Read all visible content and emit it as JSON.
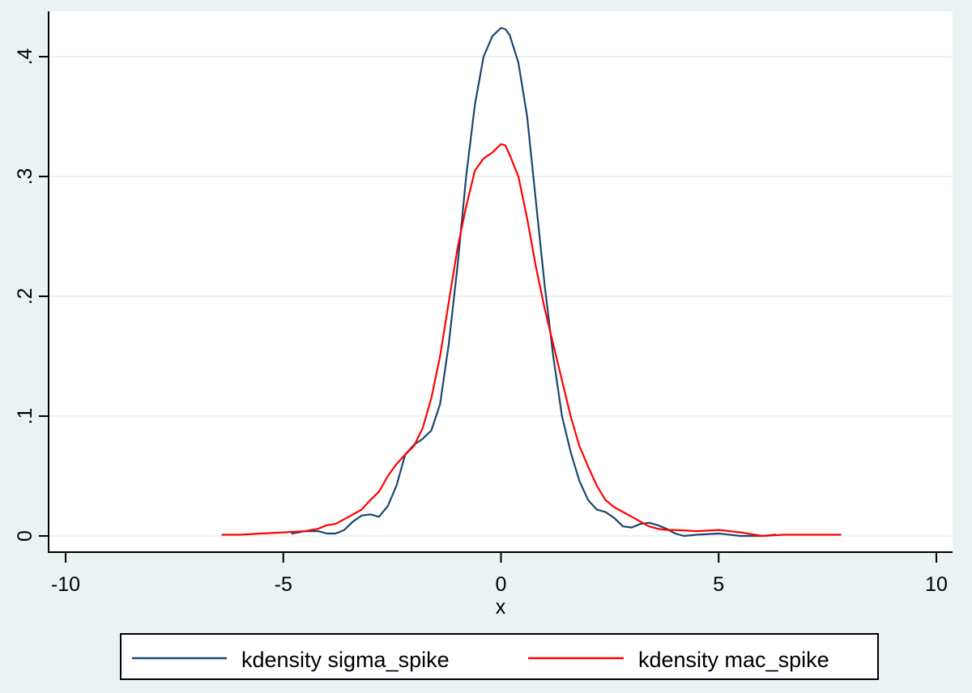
{
  "chart_data": {
    "type": "line",
    "title": "",
    "xlabel": "x",
    "ylabel": "",
    "xlim": [
      -10,
      10
    ],
    "ylim": [
      0,
      0.43
    ],
    "grid": true,
    "legend_position": "bottom",
    "x_ticks": [
      -10,
      -5,
      0,
      5,
      10
    ],
    "x_tick_labels": [
      "-10",
      "-5",
      "0",
      "5",
      "10"
    ],
    "y_ticks": [
      0,
      0.1,
      0.2,
      0.3,
      0.4
    ],
    "y_tick_labels": [
      "0",
      ".1",
      ".2",
      ".3",
      ".4"
    ],
    "series": [
      {
        "name": "kdensity sigma_spike",
        "color": "#1a476f",
        "x": [
          -4.8,
          -4.5,
          -4.2,
          -4.0,
          -3.8,
          -3.6,
          -3.4,
          -3.2,
          -3.0,
          -2.8,
          -2.6,
          -2.4,
          -2.2,
          -2.0,
          -1.8,
          -1.6,
          -1.4,
          -1.2,
          -1.0,
          -0.8,
          -0.6,
          -0.4,
          -0.2,
          0.0,
          0.1,
          0.2,
          0.4,
          0.6,
          0.8,
          1.0,
          1.2,
          1.4,
          1.6,
          1.8,
          2.0,
          2.2,
          2.4,
          2.6,
          2.8,
          3.0,
          3.2,
          3.4,
          3.6,
          3.8,
          4.0,
          4.2,
          4.5,
          5.0,
          5.5,
          6.0,
          6.3
        ],
        "y": [
          0.002,
          0.004,
          0.004,
          0.002,
          0.002,
          0.005,
          0.012,
          0.017,
          0.018,
          0.016,
          0.025,
          0.042,
          0.068,
          0.076,
          0.081,
          0.088,
          0.11,
          0.16,
          0.225,
          0.3,
          0.36,
          0.4,
          0.417,
          0.424,
          0.423,
          0.418,
          0.395,
          0.35,
          0.28,
          0.21,
          0.15,
          0.1,
          0.07,
          0.046,
          0.03,
          0.022,
          0.02,
          0.015,
          0.008,
          0.007,
          0.01,
          0.011,
          0.009,
          0.006,
          0.002,
          0.0,
          0.001,
          0.002,
          0.0,
          0.0,
          0.001
        ]
      },
      {
        "name": "kdensity mac_spike",
        "color": "#ff0000",
        "x": [
          -6.4,
          -6.0,
          -5.5,
          -5.0,
          -4.5,
          -4.2,
          -4.0,
          -3.8,
          -3.6,
          -3.4,
          -3.2,
          -3.0,
          -2.8,
          -2.6,
          -2.4,
          -2.2,
          -2.0,
          -1.8,
          -1.6,
          -1.4,
          -1.2,
          -1.0,
          -0.8,
          -0.6,
          -0.4,
          -0.2,
          0.0,
          0.1,
          0.2,
          0.4,
          0.6,
          0.8,
          1.0,
          1.2,
          1.4,
          1.6,
          1.8,
          2.0,
          2.2,
          2.4,
          2.6,
          2.8,
          3.0,
          3.2,
          3.4,
          3.6,
          3.8,
          4.0,
          4.5,
          5.0,
          5.5,
          6.0,
          6.5,
          7.0,
          7.5,
          7.8
        ],
        "y": [
          0.001,
          0.001,
          0.002,
          0.003,
          0.004,
          0.006,
          0.009,
          0.01,
          0.014,
          0.018,
          0.022,
          0.03,
          0.037,
          0.05,
          0.06,
          0.068,
          0.075,
          0.09,
          0.115,
          0.15,
          0.195,
          0.24,
          0.275,
          0.305,
          0.315,
          0.32,
          0.327,
          0.326,
          0.318,
          0.3,
          0.265,
          0.225,
          0.19,
          0.16,
          0.13,
          0.1,
          0.075,
          0.058,
          0.042,
          0.03,
          0.024,
          0.02,
          0.016,
          0.012,
          0.008,
          0.006,
          0.005,
          0.005,
          0.004,
          0.005,
          0.003,
          0.0,
          0.001,
          0.001,
          0.001,
          0.001
        ]
      }
    ]
  },
  "legend": {
    "items": [
      {
        "label": "kdensity sigma_spike",
        "color": "#1a476f"
      },
      {
        "label": "kdensity mac_spike",
        "color": "#ff0000"
      }
    ]
  },
  "axes": {
    "x_title": "x"
  }
}
